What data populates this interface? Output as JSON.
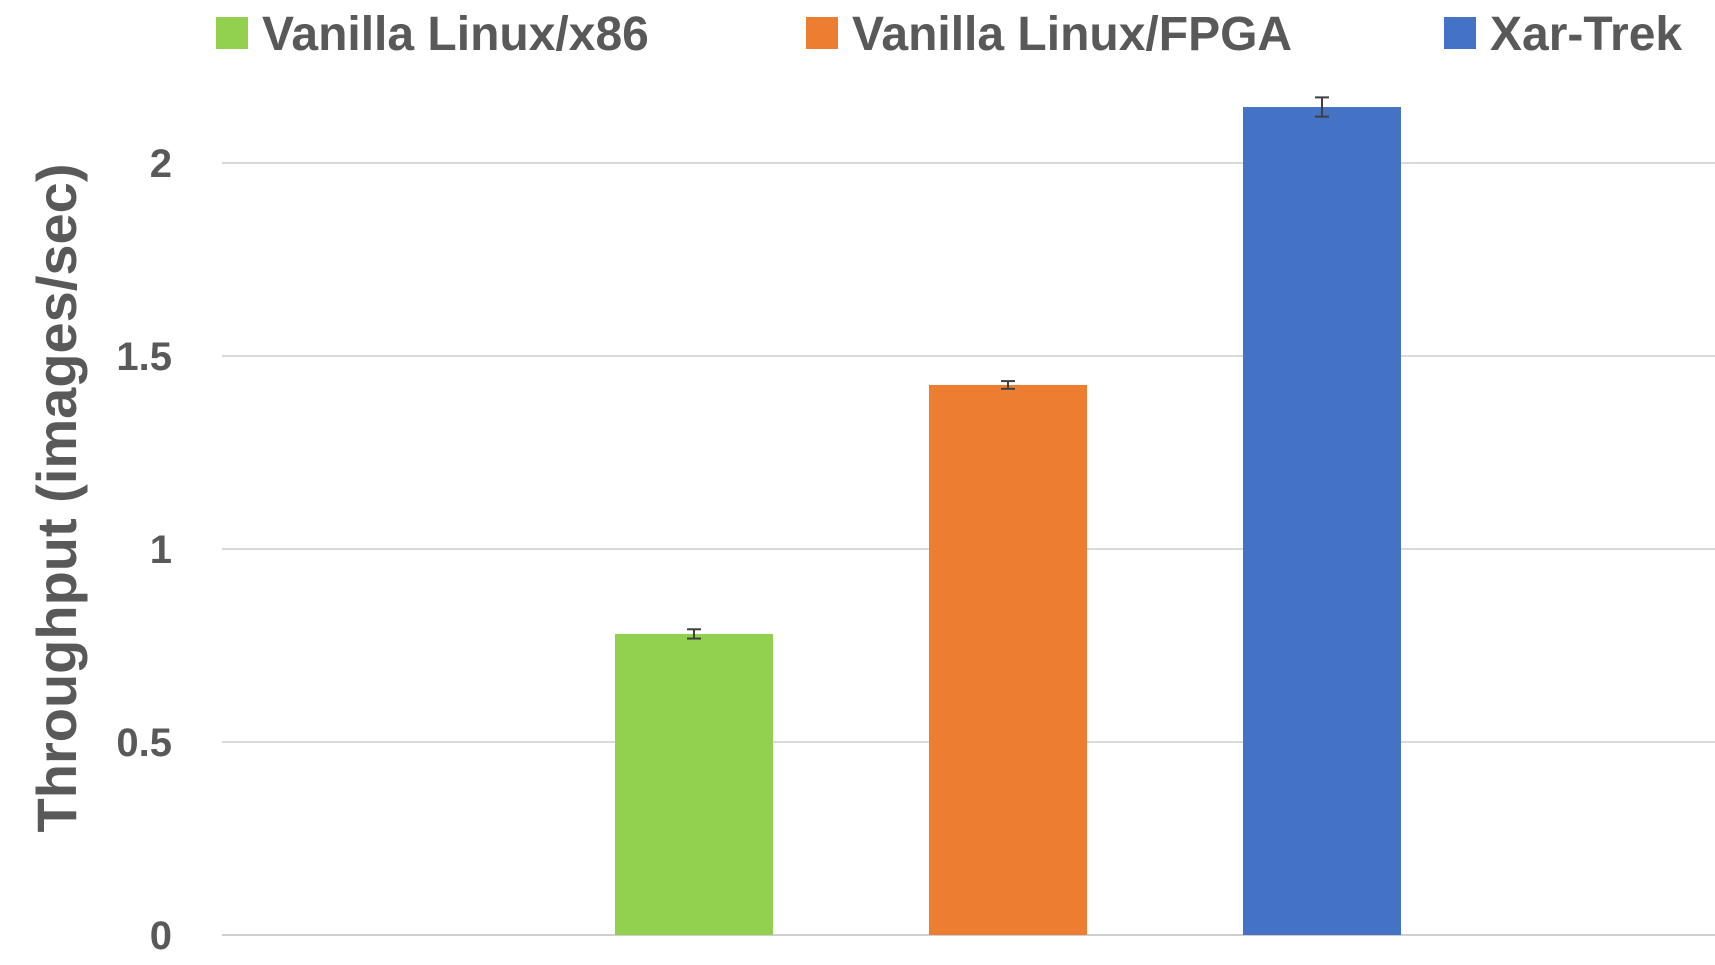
{
  "chart_data": {
    "type": "bar",
    "title": "",
    "xlabel": "",
    "ylabel": "Throughput (images/sec)",
    "ylim": [
      0,
      2.2
    ],
    "yticks": [
      0,
      0.5,
      1,
      1.5,
      2
    ],
    "ytick_labels": [
      "0",
      "0.5",
      "1",
      "1.5",
      "2"
    ],
    "grid": true,
    "legend_position": "top",
    "series": [
      {
        "name": "Vanilla Linux/x86",
        "value": 0.78,
        "error": 0.012,
        "color": "#92d050"
      },
      {
        "name": "Vanilla Linux/FPGA",
        "value": 1.425,
        "error": 0.01,
        "color": "#ed7d31"
      },
      {
        "name": "Xar-Trek",
        "value": 2.145,
        "error": 0.025,
        "color": "#4472c4"
      }
    ]
  }
}
